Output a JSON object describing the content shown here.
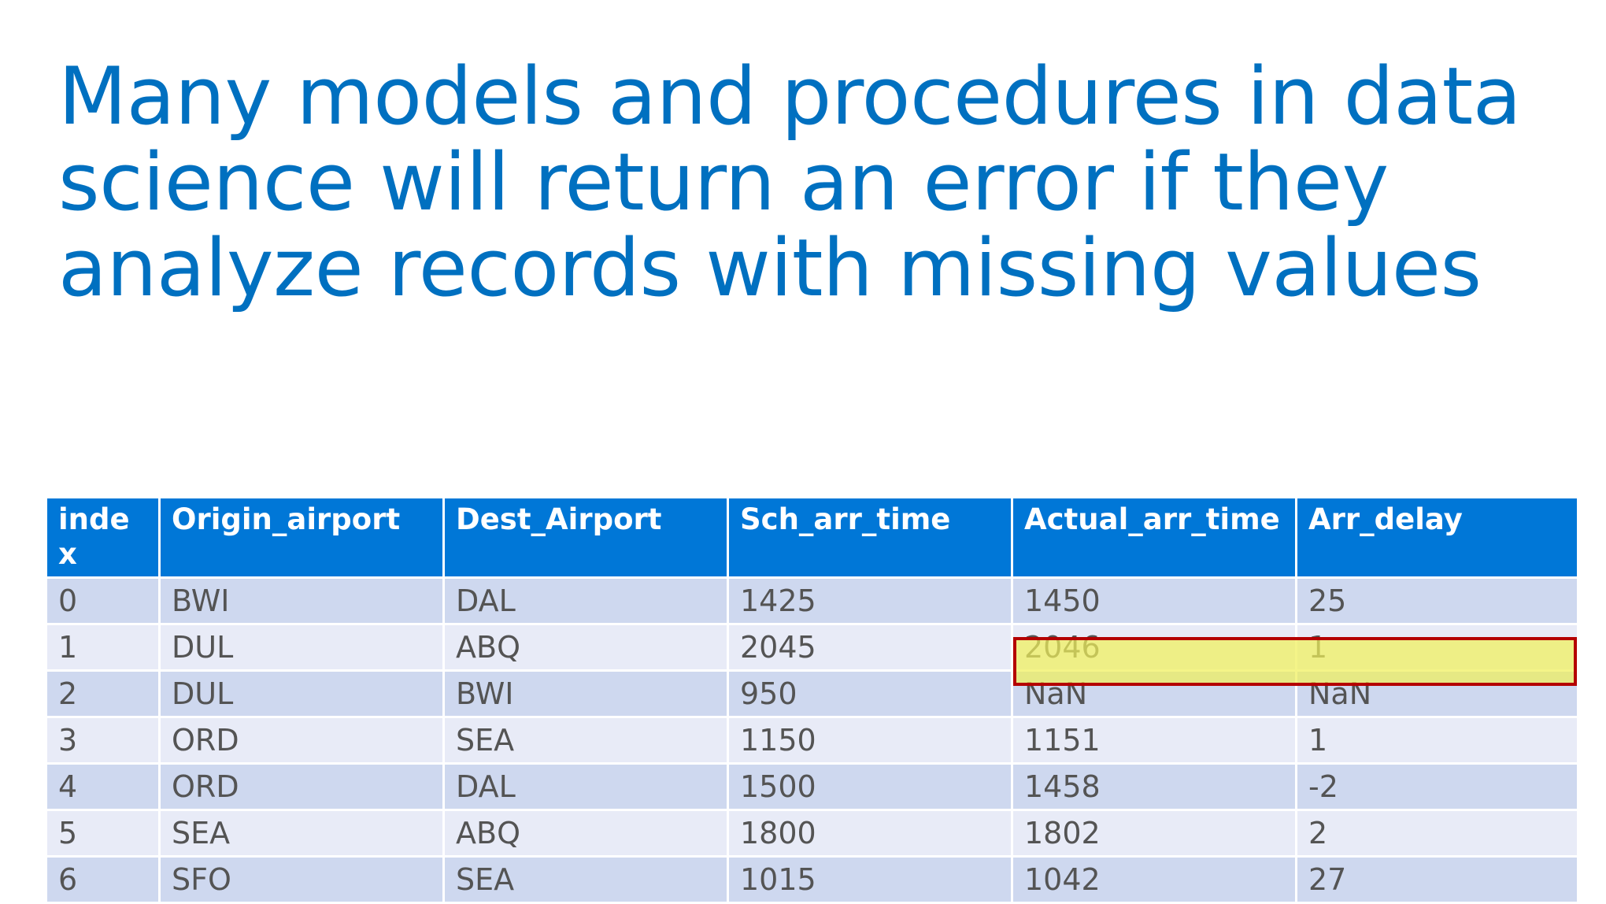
{
  "title": "Many models and procedures in data science will return an error if they analyze records with missing values",
  "table": {
    "headers": [
      "index",
      "Origin_airport",
      "Dest_Airport",
      "Sch_arr_time",
      "Actual_arr_time",
      "Arr_delay"
    ],
    "rows": [
      [
        "0",
        "BWI",
        "DAL",
        "1425",
        "1450",
        "25"
      ],
      [
        "1",
        "DUL",
        "ABQ",
        "2045",
        "2046",
        "1"
      ],
      [
        "2",
        "DUL",
        "BWI",
        "950",
        "NaN",
        "NaN"
      ],
      [
        "3",
        "ORD",
        "SEA",
        "1150",
        "1151",
        "1"
      ],
      [
        "4",
        "ORD",
        "DAL",
        "1500",
        "1458",
        "-2"
      ],
      [
        "5",
        "SEA",
        "ABQ",
        "1800",
        "1802",
        "2"
      ],
      [
        "6",
        "SFO",
        "SEA",
        "1015",
        "1042",
        "27"
      ]
    ]
  },
  "colors": {
    "title": "#0070C0",
    "header_bg": "#0077D7",
    "row_odd_bg": "#CED8EF",
    "row_even_bg": "#E8EBF7",
    "highlight_fill": "#F0F05A",
    "highlight_border": "#B40000"
  }
}
